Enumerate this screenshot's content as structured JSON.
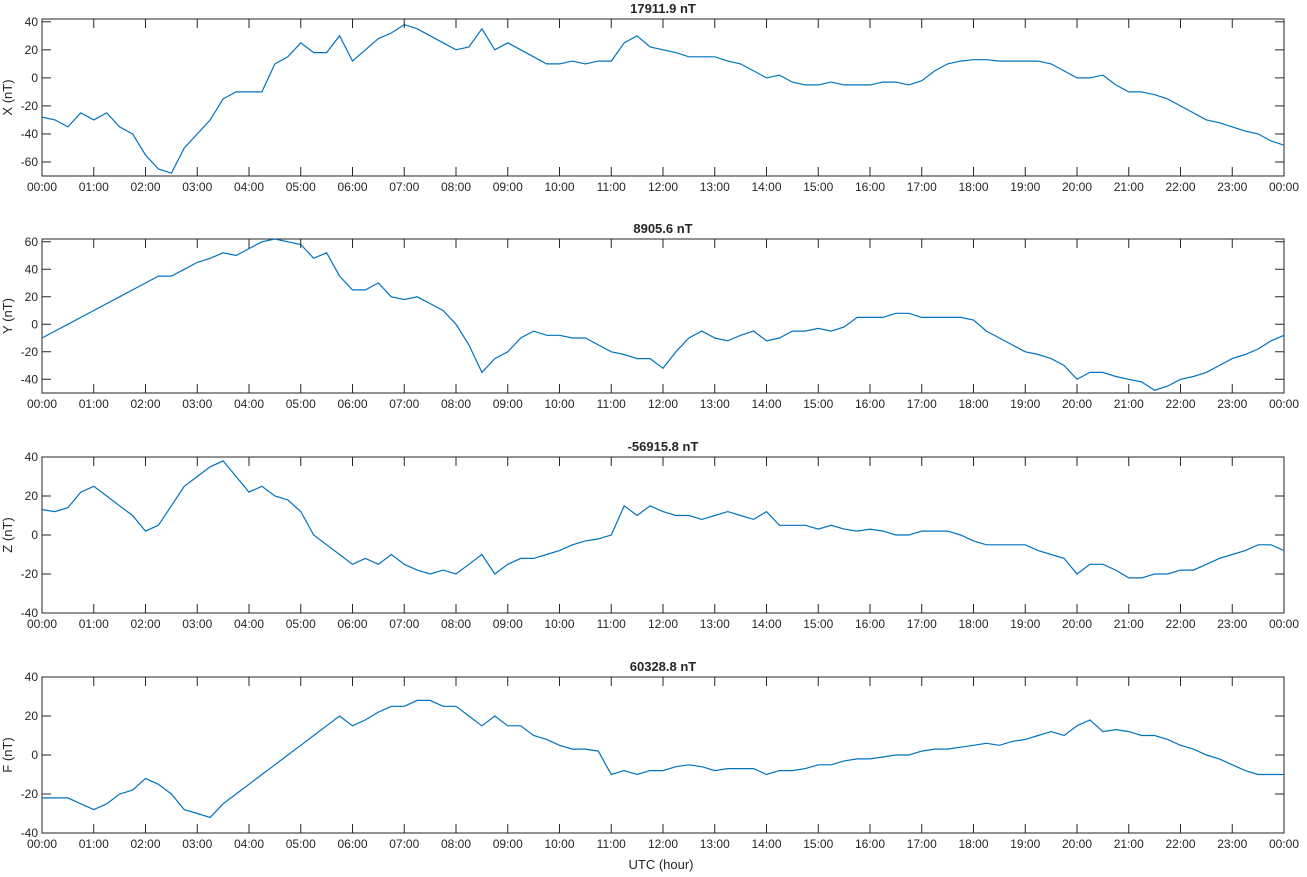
{
  "line_color": "#0072bd",
  "xlabel": "UTC (hour)",
  "chart_data": [
    {
      "type": "line",
      "title": "17911.9 nT",
      "ylabel": "X (nT)",
      "xlim": [
        0,
        24
      ],
      "ylim": [
        -70,
        42
      ],
      "yticks": [
        -60,
        -40,
        -20,
        0,
        20,
        40
      ],
      "xtick_labels": [
        "00:00",
        "01:00",
        "02:00",
        "03:00",
        "04:00",
        "05:00",
        "06:00",
        "07:00",
        "08:00",
        "09:00",
        "10:00",
        "11:00",
        "12:00",
        "13:00",
        "14:00",
        "15:00",
        "16:00",
        "17:00",
        "18:00",
        "19:00",
        "20:00",
        "21:00",
        "22:00",
        "23:00",
        "00:00"
      ],
      "series": [
        {
          "x": [
            0,
            0.25,
            0.5,
            0.75,
            1,
            1.25,
            1.5,
            1.75,
            2,
            2.25,
            2.5,
            2.75,
            3,
            3.25,
            3.5,
            3.75,
            4,
            4.25,
            4.5,
            4.75,
            5,
            5.25,
            5.5,
            5.75,
            6,
            6.25,
            6.5,
            6.75,
            7,
            7.25,
            7.5,
            7.75,
            8,
            8.25,
            8.5,
            8.75,
            9,
            9.25,
            9.5,
            9.75,
            10,
            10.25,
            10.5,
            10.75,
            11,
            11.25,
            11.5,
            11.75,
            12,
            12.25,
            12.5,
            12.75,
            13,
            13.25,
            13.5,
            13.75,
            14,
            14.25,
            14.5,
            14.75,
            15,
            15.25,
            15.5,
            15.75,
            16,
            16.25,
            16.5,
            16.75,
            17,
            17.25,
            17.5,
            17.75,
            18,
            18.25,
            18.5,
            18.75,
            19,
            19.25,
            19.5,
            19.75,
            20,
            20.25,
            20.5,
            20.75,
            21,
            21.25,
            21.5,
            21.75,
            22,
            22.25,
            22.5,
            22.75,
            23,
            23.25,
            23.5,
            23.75,
            24
          ],
          "y": [
            -28,
            -30,
            -35,
            -25,
            -30,
            -25,
            -35,
            -40,
            -55,
            -65,
            -68,
            -50,
            -40,
            -30,
            -15,
            -10,
            -10,
            -10,
            10,
            15,
            25,
            18,
            18,
            30,
            12,
            20,
            28,
            32,
            38,
            35,
            30,
            25,
            20,
            22,
            35,
            20,
            25,
            20,
            15,
            10,
            10,
            12,
            10,
            12,
            12,
            25,
            30,
            22,
            20,
            18,
            15,
            15,
            15,
            12,
            10,
            5,
            0,
            2,
            -3,
            -5,
            -5,
            -3,
            -5,
            -5,
            -5,
            -3,
            -3,
            -5,
            -2,
            5,
            10,
            12,
            13,
            13,
            12,
            12,
            12,
            12,
            10,
            5,
            0,
            0,
            2,
            -5,
            -10,
            -10,
            -12,
            -15,
            -20,
            -25,
            -30,
            -32,
            -35,
            -38,
            -40,
            -45,
            -48
          ]
        }
      ]
    },
    {
      "type": "line",
      "title": "8905.6 nT",
      "ylabel": "Y (nT)",
      "xlim": [
        0,
        24
      ],
      "ylim": [
        -50,
        62
      ],
      "yticks": [
        -40,
        -20,
        0,
        20,
        40,
        60
      ],
      "xtick_labels": [
        "00:00",
        "01:00",
        "02:00",
        "03:00",
        "04:00",
        "05:00",
        "06:00",
        "07:00",
        "08:00",
        "09:00",
        "10:00",
        "11:00",
        "12:00",
        "13:00",
        "14:00",
        "15:00",
        "16:00",
        "17:00",
        "18:00",
        "19:00",
        "20:00",
        "21:00",
        "22:00",
        "23:00",
        "00:00"
      ],
      "series": [
        {
          "x": [
            0,
            0.25,
            0.5,
            0.75,
            1,
            1.25,
            1.5,
            1.75,
            2,
            2.25,
            2.5,
            2.75,
            3,
            3.25,
            3.5,
            3.75,
            4,
            4.25,
            4.5,
            4.75,
            5,
            5.25,
            5.5,
            5.75,
            6,
            6.25,
            6.5,
            6.75,
            7,
            7.25,
            7.5,
            7.75,
            8,
            8.25,
            8.5,
            8.75,
            9,
            9.25,
            9.5,
            9.75,
            10,
            10.25,
            10.5,
            10.75,
            11,
            11.25,
            11.5,
            11.75,
            12,
            12.25,
            12.5,
            12.75,
            13,
            13.25,
            13.5,
            13.75,
            14,
            14.25,
            14.5,
            14.75,
            15,
            15.25,
            15.5,
            15.75,
            16,
            16.25,
            16.5,
            16.75,
            17,
            17.25,
            17.5,
            17.75,
            18,
            18.25,
            18.5,
            18.75,
            19,
            19.25,
            19.5,
            19.75,
            20,
            20.25,
            20.5,
            20.75,
            21,
            21.25,
            21.5,
            21.75,
            22,
            22.25,
            22.5,
            22.75,
            23,
            23.25,
            23.5,
            23.75,
            24
          ],
          "y": [
            -10,
            -5,
            0,
            5,
            10,
            15,
            20,
            25,
            30,
            35,
            35,
            40,
            45,
            48,
            52,
            50,
            55,
            60,
            62,
            60,
            58,
            48,
            52,
            35,
            25,
            25,
            30,
            20,
            18,
            20,
            15,
            10,
            0,
            -15,
            -35,
            -25,
            -20,
            -10,
            -5,
            -8,
            -8,
            -10,
            -10,
            -15,
            -20,
            -22,
            -25,
            -25,
            -32,
            -20,
            -10,
            -5,
            -10,
            -12,
            -8,
            -5,
            -12,
            -10,
            -5,
            -5,
            -3,
            -5,
            -2,
            5,
            5,
            5,
            8,
            8,
            5,
            5,
            5,
            5,
            3,
            -5,
            -10,
            -15,
            -20,
            -22,
            -25,
            -30,
            -40,
            -35,
            -35,
            -38,
            -40,
            -42,
            -48,
            -45,
            -40,
            -38,
            -35,
            -30,
            -25,
            -22,
            -18,
            -12,
            -8
          ]
        }
      ]
    },
    {
      "type": "line",
      "title": "-56915.8 nT",
      "ylabel": "Z (nT)",
      "xlim": [
        0,
        24
      ],
      "ylim": [
        -40,
        40
      ],
      "yticks": [
        -40,
        -20,
        0,
        20,
        40
      ],
      "xtick_labels": [
        "00:00",
        "01:00",
        "02:00",
        "03:00",
        "04:00",
        "05:00",
        "06:00",
        "07:00",
        "08:00",
        "09:00",
        "10:00",
        "11:00",
        "12:00",
        "13:00",
        "14:00",
        "15:00",
        "16:00",
        "17:00",
        "18:00",
        "19:00",
        "20:00",
        "21:00",
        "22:00",
        "23:00",
        "00:00"
      ],
      "series": [
        {
          "x": [
            0,
            0.25,
            0.5,
            0.75,
            1,
            1.25,
            1.5,
            1.75,
            2,
            2.25,
            2.5,
            2.75,
            3,
            3.25,
            3.5,
            3.75,
            4,
            4.25,
            4.5,
            4.75,
            5,
            5.25,
            5.5,
            5.75,
            6,
            6.25,
            6.5,
            6.75,
            7,
            7.25,
            7.5,
            7.75,
            8,
            8.25,
            8.5,
            8.75,
            9,
            9.25,
            9.5,
            9.75,
            10,
            10.25,
            10.5,
            10.75,
            11,
            11.25,
            11.5,
            11.75,
            12,
            12.25,
            12.5,
            12.75,
            13,
            13.25,
            13.5,
            13.75,
            14,
            14.25,
            14.5,
            14.75,
            15,
            15.25,
            15.5,
            15.75,
            16,
            16.25,
            16.5,
            16.75,
            17,
            17.25,
            17.5,
            17.75,
            18,
            18.25,
            18.5,
            18.75,
            19,
            19.25,
            19.5,
            19.75,
            20,
            20.25,
            20.5,
            20.75,
            21,
            21.25,
            21.5,
            21.75,
            22,
            22.25,
            22.5,
            22.75,
            23,
            23.25,
            23.5,
            23.75,
            24
          ],
          "y": [
            13,
            12,
            14,
            22,
            25,
            20,
            15,
            10,
            2,
            5,
            15,
            25,
            30,
            35,
            38,
            30,
            22,
            25,
            20,
            18,
            12,
            0,
            -5,
            -10,
            -15,
            -12,
            -15,
            -10,
            -15,
            -18,
            -20,
            -18,
            -20,
            -15,
            -10,
            -20,
            -15,
            -12,
            -12,
            -10,
            -8,
            -5,
            -3,
            -2,
            0,
            15,
            10,
            15,
            12,
            10,
            10,
            8,
            10,
            12,
            10,
            8,
            12,
            5,
            5,
            5,
            3,
            5,
            3,
            2,
            3,
            2,
            0,
            0,
            2,
            2,
            2,
            0,
            -3,
            -5,
            -5,
            -5,
            -5,
            -8,
            -10,
            -12,
            -20,
            -15,
            -15,
            -18,
            -22,
            -22,
            -20,
            -20,
            -18,
            -18,
            -15,
            -12,
            -10,
            -8,
            -5,
            -5,
            -8
          ]
        }
      ]
    },
    {
      "type": "line",
      "title": "60328.8 nT",
      "ylabel": "F (nT)",
      "xlim": [
        0,
        24
      ],
      "ylim": [
        -40,
        40
      ],
      "yticks": [
        -40,
        -20,
        0,
        20,
        40
      ],
      "xtick_labels": [
        "00:00",
        "01:00",
        "02:00",
        "03:00",
        "04:00",
        "05:00",
        "06:00",
        "07:00",
        "08:00",
        "09:00",
        "10:00",
        "11:00",
        "12:00",
        "13:00",
        "14:00",
        "15:00",
        "16:00",
        "17:00",
        "18:00",
        "19:00",
        "20:00",
        "21:00",
        "22:00",
        "23:00",
        "00:00"
      ],
      "series": [
        {
          "x": [
            0,
            0.25,
            0.5,
            0.75,
            1,
            1.25,
            1.5,
            1.75,
            2,
            2.25,
            2.5,
            2.75,
            3,
            3.25,
            3.5,
            3.75,
            4,
            4.25,
            4.5,
            4.75,
            5,
            5.25,
            5.5,
            5.75,
            6,
            6.25,
            6.5,
            6.75,
            7,
            7.25,
            7.5,
            7.75,
            8,
            8.25,
            8.5,
            8.75,
            9,
            9.25,
            9.5,
            9.75,
            10,
            10.25,
            10.5,
            10.75,
            11,
            11.25,
            11.5,
            11.75,
            12,
            12.25,
            12.5,
            12.75,
            13,
            13.25,
            13.5,
            13.75,
            14,
            14.25,
            14.5,
            14.75,
            15,
            15.25,
            15.5,
            15.75,
            16,
            16.25,
            16.5,
            16.75,
            17,
            17.25,
            17.5,
            17.75,
            18,
            18.25,
            18.5,
            18.75,
            19,
            19.25,
            19.5,
            19.75,
            20,
            20.25,
            20.5,
            20.75,
            21,
            21.25,
            21.5,
            21.75,
            22,
            22.25,
            22.5,
            22.75,
            23,
            23.25,
            23.5,
            23.75,
            24
          ],
          "y": [
            -22,
            -22,
            -22,
            -25,
            -28,
            -25,
            -20,
            -18,
            -12,
            -15,
            -20,
            -28,
            -30,
            -32,
            -25,
            -20,
            -15,
            -10,
            -5,
            0,
            5,
            10,
            15,
            20,
            15,
            18,
            22,
            25,
            25,
            28,
            28,
            25,
            25,
            20,
            15,
            20,
            15,
            15,
            10,
            8,
            5,
            3,
            3,
            2,
            -10,
            -8,
            -10,
            -8,
            -8,
            -6,
            -5,
            -6,
            -8,
            -7,
            -7,
            -7,
            -10,
            -8,
            -8,
            -7,
            -5,
            -5,
            -3,
            -2,
            -2,
            -1,
            0,
            0,
            2,
            3,
            3,
            4,
            5,
            6,
            5,
            7,
            8,
            10,
            12,
            10,
            15,
            18,
            12,
            13,
            12,
            10,
            10,
            8,
            5,
            3,
            0,
            -2,
            -5,
            -8,
            -10,
            -10,
            -10
          ]
        }
      ]
    }
  ]
}
